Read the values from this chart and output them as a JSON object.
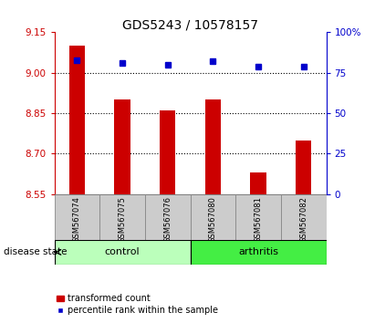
{
  "title": "GDS5243 / 10578157",
  "samples": [
    "GSM567074",
    "GSM567075",
    "GSM567076",
    "GSM567080",
    "GSM567081",
    "GSM567082"
  ],
  "bar_values": [
    9.1,
    8.9,
    8.86,
    8.9,
    8.63,
    8.75
  ],
  "dot_values_pct": [
    83,
    81,
    80,
    82,
    79,
    79
  ],
  "ylim_left": [
    8.55,
    9.15
  ],
  "ylim_right": [
    0,
    100
  ],
  "yticks_left": [
    8.55,
    8.7,
    8.85,
    9.0,
    9.15
  ],
  "yticks_right": [
    0,
    25,
    50,
    75,
    100
  ],
  "grid_values": [
    9.0,
    8.85,
    8.7
  ],
  "bar_color": "#cc0000",
  "dot_color": "#0000cc",
  "bar_bottom": 8.55,
  "control_indices": [
    0,
    1,
    2
  ],
  "arthritis_indices": [
    3,
    4,
    5
  ],
  "control_color": "#bbffbb",
  "arthritis_color": "#44ee44",
  "label_box_color": "#cccccc",
  "control_label": "control",
  "arthritis_label": "arthritis",
  "disease_state_label": "disease state",
  "legend_bar_label": "transformed count",
  "legend_dot_label": "percentile rank within the sample",
  "title_fontsize": 10,
  "tick_fontsize": 7.5,
  "axis_label_color_left": "#cc0000",
  "axis_label_color_right": "#0000cc"
}
